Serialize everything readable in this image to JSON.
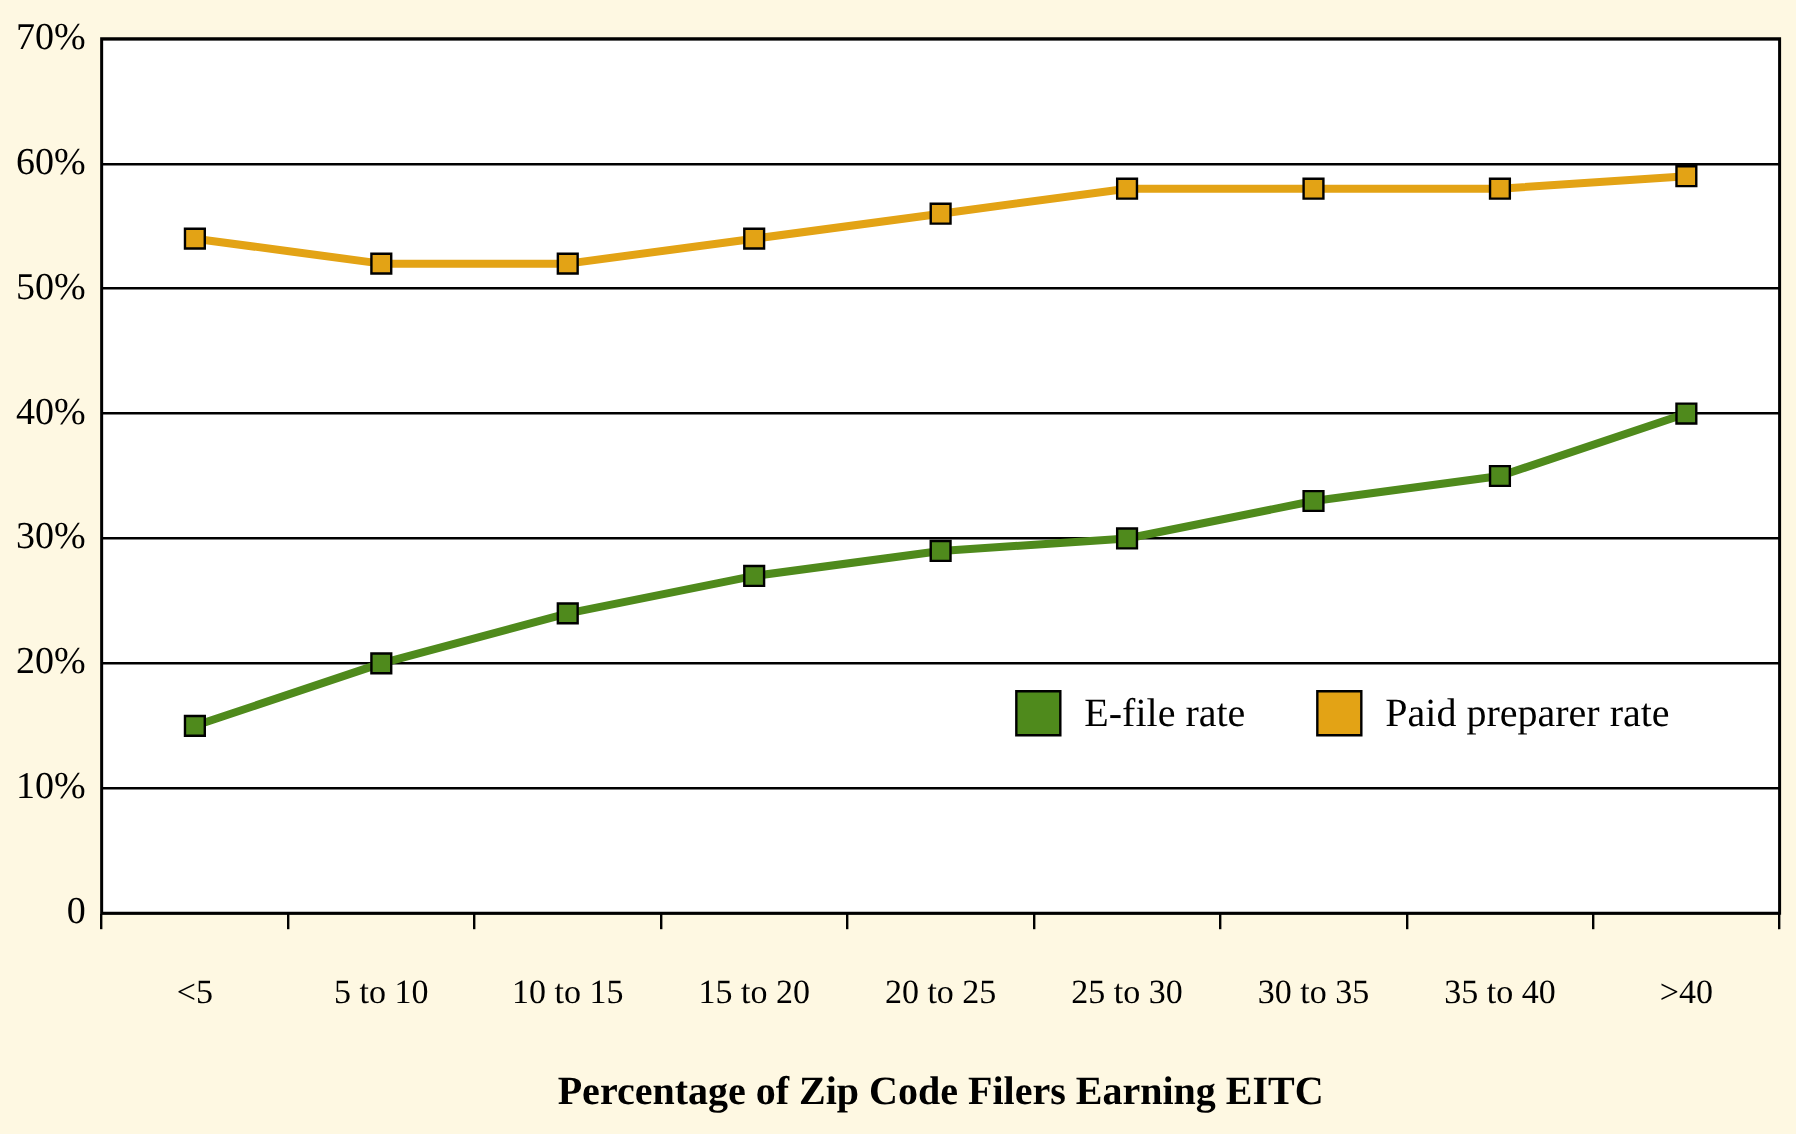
{
  "chart_data": {
    "type": "line",
    "xlabel": "Percentage of Zip Code Filers Earning EITC",
    "categories": [
      "<5",
      "5 to 10",
      "10 to 15",
      "15 to 20",
      "20 to 25",
      "25 to 30",
      "30 to 35",
      "35 to 40",
      ">40"
    ],
    "series": [
      {
        "name": "E-file rate",
        "color": "#4f8a1c",
        "values": [
          15,
          20,
          24,
          27,
          29,
          30,
          33,
          35,
          40
        ]
      },
      {
        "name": "Paid preparer rate",
        "color": "#e3a315",
        "values": [
          54,
          52,
          52,
          54,
          56,
          58,
          58,
          58,
          59
        ]
      }
    ],
    "ylim": [
      0,
      70
    ],
    "yticks": [
      0,
      {
        "value": 10,
        "label": "10%"
      },
      {
        "value": 20,
        "label": "20%"
      },
      {
        "value": 30,
        "label": "30%"
      },
      {
        "value": 40,
        "label": "40%"
      },
      {
        "value": 50,
        "label": "50%"
      },
      {
        "value": 60,
        "label": "60%"
      },
      {
        "value": 70,
        "label": "70%"
      }
    ],
    "grid": "y",
    "legend": "bottom right",
    "marker": "square",
    "line_style": "solid"
  }
}
